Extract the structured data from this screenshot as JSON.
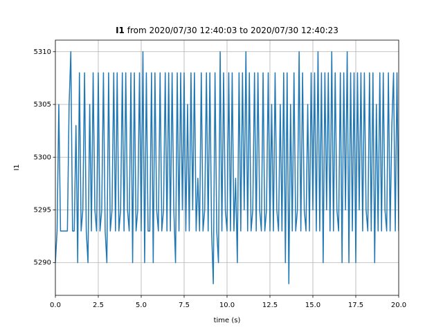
{
  "chart_data": {
    "type": "line",
    "title_bold": "I1",
    "title": "from 2020/07/30 12:40:03 to 2020/07/30 12:40:23",
    "xlabel": "time (s)",
    "ylabel": "I1",
    "grid": true,
    "xlim": [
      0,
      20
    ],
    "ylim": [
      5286.9,
      5311.1
    ],
    "xticks": [
      {
        "value": 0,
        "label": "0.0"
      },
      {
        "value": 2.5,
        "label": "2.5"
      },
      {
        "value": 5,
        "label": "5.0"
      },
      {
        "value": 7.5,
        "label": "7.5"
      },
      {
        "value": 10,
        "label": "10.0"
      },
      {
        "value": 12.5,
        "label": "12.5"
      },
      {
        "value": 15,
        "label": "15.0"
      },
      {
        "value": 17.5,
        "label": "17.5"
      },
      {
        "value": 20,
        "label": "20.0"
      }
    ],
    "yticks": [
      5290,
      5295,
      5300,
      5305,
      5310
    ],
    "x": [
      0,
      0.1,
      0.2,
      0.3,
      0.4,
      0.5,
      0.6,
      0.7,
      0.8,
      0.9,
      1,
      1.1,
      1.2,
      1.3,
      1.4,
      1.5,
      1.6,
      1.7,
      1.8,
      1.9,
      2,
      2.1,
      2.2,
      2.3,
      2.4,
      2.5,
      2.6,
      2.7,
      2.8,
      2.9,
      3,
      3.1,
      3.2,
      3.3,
      3.4,
      3.5,
      3.6,
      3.7,
      3.8,
      3.9,
      4,
      4.1,
      4.2,
      4.3,
      4.4,
      4.5,
      4.6,
      4.7,
      4.8,
      4.9,
      5,
      5.1,
      5.2,
      5.3,
      5.4,
      5.5,
      5.6,
      5.7,
      5.8,
      5.9,
      6,
      6.1,
      6.2,
      6.3,
      6.4,
      6.5,
      6.6,
      6.7,
      6.8,
      6.9,
      7,
      7.1,
      7.2,
      7.3,
      7.4,
      7.5,
      7.6,
      7.7,
      7.8,
      7.9,
      8,
      8.1,
      8.2,
      8.3,
      8.4,
      8.5,
      8.6,
      8.7,
      8.8,
      8.9,
      9,
      9.1,
      9.2,
      9.3,
      9.4,
      9.5,
      9.6,
      9.7,
      9.8,
      9.9,
      10,
      10.1,
      10.2,
      10.3,
      10.4,
      10.5,
      10.6,
      10.7,
      10.8,
      10.9,
      11,
      11.1,
      11.2,
      11.3,
      11.4,
      11.5,
      11.6,
      11.7,
      11.8,
      11.9,
      12,
      12.1,
      12.2,
      12.3,
      12.4,
      12.5,
      12.6,
      12.7,
      12.8,
      12.9,
      13,
      13.1,
      13.2,
      13.3,
      13.4,
      13.5,
      13.6,
      13.7,
      13.8,
      13.9,
      14,
      14.1,
      14.2,
      14.3,
      14.4,
      14.5,
      14.6,
      14.7,
      14.8,
      14.9,
      15,
      15.1,
      15.2,
      15.3,
      15.4,
      15.5,
      15.6,
      15.7,
      15.8,
      15.9,
      16,
      16.1,
      16.2,
      16.3,
      16.4,
      16.5,
      16.6,
      16.7,
      16.8,
      16.9,
      17,
      17.1,
      17.2,
      17.3,
      17.4,
      17.5,
      17.6,
      17.7,
      17.8,
      17.9,
      18,
      18.1,
      18.2,
      18.3,
      18.4,
      18.5,
      18.6,
      18.7,
      18.8,
      18.9,
      19,
      19.1,
      19.2,
      19.3,
      19.4,
      19.5,
      19.6,
      19.7,
      19.8,
      19.9,
      20
    ],
    "series": [
      {
        "name": "I1",
        "color": "#1f77b4",
        "values": [
          5290,
          5293,
          5305,
          5293,
          5293,
          5293,
          5293,
          5293,
          5305,
          5310,
          5293,
          5293,
          5303,
          5290,
          5308,
          5293,
          5295,
          5308,
          5293,
          5290,
          5305,
          5293,
          5308,
          5295,
          5293,
          5308,
          5293,
          5295,
          5308,
          5293,
          5290,
          5308,
          5293,
          5295,
          5308,
          5293,
          5308,
          5293,
          5295,
          5308,
          5293,
          5308,
          5295,
          5293,
          5308,
          5290,
          5308,
          5293,
          5295,
          5308,
          5293,
          5310,
          5290,
          5308,
          5293,
          5293,
          5308,
          5290,
          5308,
          5295,
          5293,
          5308,
          5293,
          5295,
          5308,
          5293,
          5308,
          5293,
          5308,
          5295,
          5290,
          5308,
          5293,
          5308,
          5295,
          5308,
          5293,
          5305,
          5293,
          5308,
          5295,
          5308,
          5293,
          5298,
          5293,
          5308,
          5293,
          5295,
          5308,
          5293,
          5308,
          5293,
          5288,
          5308,
          5293,
          5290,
          5310,
          5293,
          5308,
          5295,
          5293,
          5308,
          5293,
          5308,
          5293,
          5298,
          5290,
          5308,
          5293,
          5308,
          5295,
          5310,
          5293,
          5308,
          5293,
          5295,
          5308,
          5293,
          5308,
          5295,
          5293,
          5308,
          5293,
          5295,
          5308,
          5293,
          5305,
          5293,
          5308,
          5295,
          5293,
          5305,
          5293,
          5308,
          5290,
          5308,
          5288,
          5305,
          5293,
          5308,
          5293,
          5295,
          5310,
          5293,
          5308,
          5295,
          5293,
          5305,
          5293,
          5308,
          5295,
          5308,
          5293,
          5310,
          5293,
          5308,
          5290,
          5308,
          5295,
          5308,
          5293,
          5310,
          5293,
          5308,
          5295,
          5293,
          5308,
          5290,
          5308,
          5295,
          5310,
          5290,
          5308,
          5293,
          5308,
          5290,
          5308,
          5295,
          5308,
          5293,
          5308,
          5295,
          5293,
          5308,
          5293,
          5308,
          5290,
          5305,
          5293,
          5308,
          5293,
          5308,
          5295,
          5293,
          5308,
          5293,
          5303,
          5308,
          5293,
          5308,
          5293
        ]
      }
    ]
  }
}
